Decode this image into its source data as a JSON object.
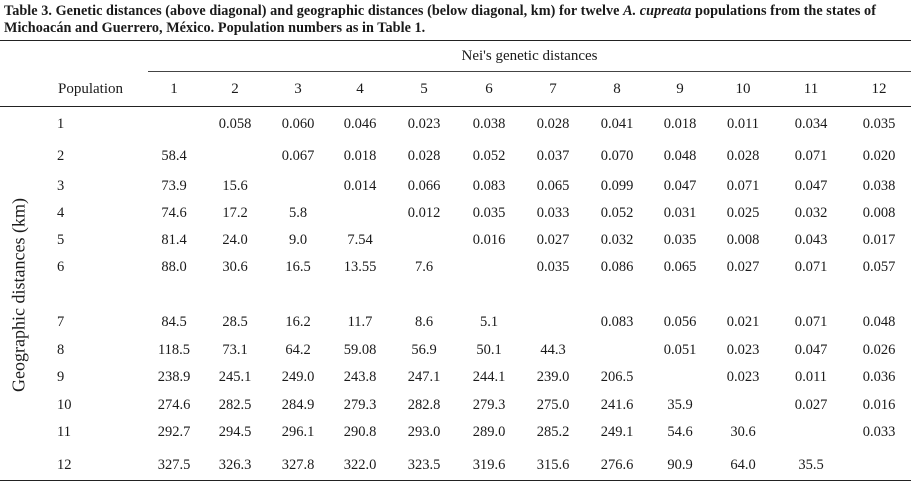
{
  "caption": {
    "table_label": "Table 3.",
    "text_before_species": " Genetic distances (above diagonal) and geographic distances (below diagonal, km) for twelve ",
    "species": "A. cupreata",
    "text_after_species": " populations from the states of Michoacán and Guerrero, México. Population numbers as in Table 1."
  },
  "header": {
    "group_label": "Nei's genetic distances",
    "row_header": "Population",
    "columns": [
      "1",
      "2",
      "3",
      "4",
      "5",
      "6",
      "7",
      "8",
      "9",
      "10",
      "11",
      "12"
    ]
  },
  "side_label": "Geographic distances (km)",
  "rows": [
    {
      "label": "1",
      "cells": [
        "",
        "0.058",
        "0.060",
        "0.046",
        "0.023",
        "0.038",
        "0.028",
        "0.041",
        "0.018",
        "0.011",
        "0.034",
        "0.035"
      ]
    },
    {
      "label": "2",
      "cells": [
        "58.4",
        "",
        "0.067",
        "0.018",
        "0.028",
        "0.052",
        "0.037",
        "0.070",
        "0.048",
        "0.028",
        "0.071",
        "0.020"
      ]
    },
    {
      "label": "3",
      "cells": [
        "73.9",
        "15.6",
        "",
        "0.014",
        "0.066",
        "0.083",
        "0.065",
        "0.099",
        "0.047",
        "0.071",
        "0.047",
        "0.038"
      ]
    },
    {
      "label": "4",
      "cells": [
        "74.6",
        "17.2",
        "5.8",
        "",
        "0.012",
        "0.035",
        "0.033",
        "0.052",
        "0.031",
        "0.025",
        "0.032",
        "0.008"
      ]
    },
    {
      "label": "5",
      "cells": [
        "81.4",
        "24.0",
        "9.0",
        "7.54",
        "",
        "0.016",
        "0.027",
        "0.032",
        "0.035",
        "0.008",
        "0.043",
        "0.017"
      ]
    },
    {
      "label": "6",
      "cells": [
        "88.0",
        "30.6",
        "16.5",
        "13.55",
        "7.6",
        "",
        "0.035",
        "0.086",
        "0.065",
        "0.027",
        "0.071",
        "0.057"
      ]
    },
    {
      "label": "7",
      "cells": [
        "84.5",
        "28.5",
        "16.2",
        "11.7",
        "8.6",
        "5.1",
        "",
        "0.083",
        "0.056",
        "0.021",
        "0.071",
        "0.048"
      ]
    },
    {
      "label": "8",
      "cells": [
        "118.5",
        "73.1",
        "64.2",
        "59.08",
        "56.9",
        "50.1",
        "44.3",
        "",
        "0.051",
        "0.023",
        "0.047",
        "0.026"
      ]
    },
    {
      "label": "9",
      "cells": [
        "238.9",
        "245.1",
        "249.0",
        "243.8",
        "247.1",
        "244.1",
        "239.0",
        "206.5",
        "",
        "0.023",
        "0.011",
        "0.036"
      ]
    },
    {
      "label": "10",
      "cells": [
        "274.6",
        "282.5",
        "284.9",
        "279.3",
        "282.8",
        "279.3",
        "275.0",
        "241.6",
        "35.9",
        "",
        "0.027",
        "0.016"
      ]
    },
    {
      "label": "11",
      "cells": [
        "292.7",
        "294.5",
        "296.1",
        "290.8",
        "293.0",
        "289.0",
        "285.2",
        "249.1",
        "54.6",
        "30.6",
        "",
        "0.033"
      ]
    },
    {
      "label": "12",
      "cells": [
        "327.5",
        "326.3",
        "327.8",
        "322.0",
        "323.5",
        "319.6",
        "315.6",
        "276.6",
        "90.9",
        "64.0",
        "35.5",
        ""
      ]
    }
  ]
}
